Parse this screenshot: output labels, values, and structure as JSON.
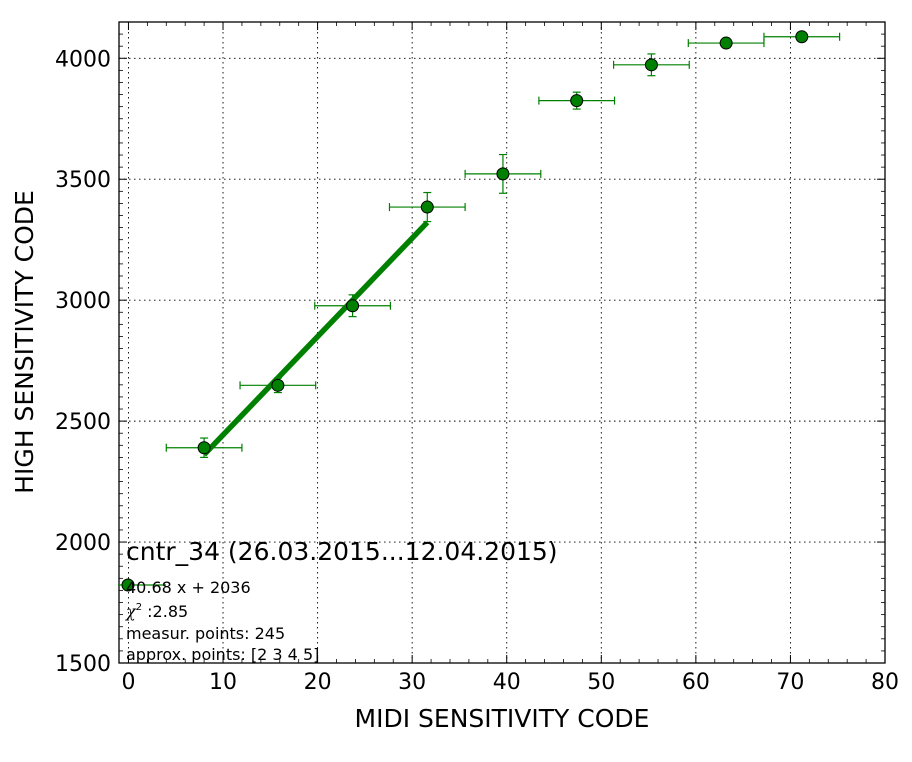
{
  "chart_data": {
    "type": "scatter",
    "xlabel": "MIDI SENSITIVITY CODE",
    "ylabel": "HIGH SENSITIVITY CODE",
    "xlim": [
      -1,
      80
    ],
    "ylim": [
      1500,
      4150
    ],
    "xticks": [
      0,
      10,
      20,
      30,
      40,
      50,
      60,
      70,
      80
    ],
    "yticks": [
      1500,
      2000,
      2500,
      3000,
      3500,
      4000
    ],
    "xtick_labels": [
      "0",
      "10",
      "20",
      "30",
      "40",
      "50",
      "60",
      "70",
      "80"
    ],
    "ytick_labels": [
      "1500",
      "2000",
      "2500",
      "3000",
      "3500",
      "4000"
    ],
    "grid": true,
    "grid_style": "dotted",
    "colors": {
      "points": "#008000",
      "fit": "#008000",
      "errorbars": "#008000"
    },
    "points": [
      {
        "x": 8,
        "y": 2390,
        "xerr": 4,
        "yerr": 40
      },
      {
        "x": 15.8,
        "y": 2648,
        "xerr": 4,
        "yerr": 30
      },
      {
        "x": 23.7,
        "y": 2977,
        "xerr": 4,
        "yerr": 45
      },
      {
        "x": 31.6,
        "y": 3385,
        "xerr": 4,
        "yerr": 60
      },
      {
        "x": 39.6,
        "y": 3522,
        "xerr": 4,
        "yerr": 80
      },
      {
        "x": 47.4,
        "y": 3825,
        "xerr": 4,
        "yerr": 35
      },
      {
        "x": 55.3,
        "y": 3973,
        "xerr": 4,
        "yerr": 45
      },
      {
        "x": 63.2,
        "y": 4063,
        "xerr": 4,
        "yerr": 10
      },
      {
        "x": 71.2,
        "y": 4089,
        "xerr": 4,
        "yerr": 10
      }
    ],
    "fit": {
      "slope": 40.68,
      "intercept": 2036,
      "x_start": 8,
      "x_end": 31.6
    },
    "annotation": {
      "title": "cntr_34 (26.03.2015...12.04.2015)",
      "legend_label": "40.68 x + 2036",
      "chi_symbol": "χ",
      "chi_power": "2",
      "chi_value": " :2.85",
      "measur_points": "measur. points: 245",
      "approx_points": "approx. points: [2 3 4 5]",
      "placement": "bottom-left"
    }
  }
}
